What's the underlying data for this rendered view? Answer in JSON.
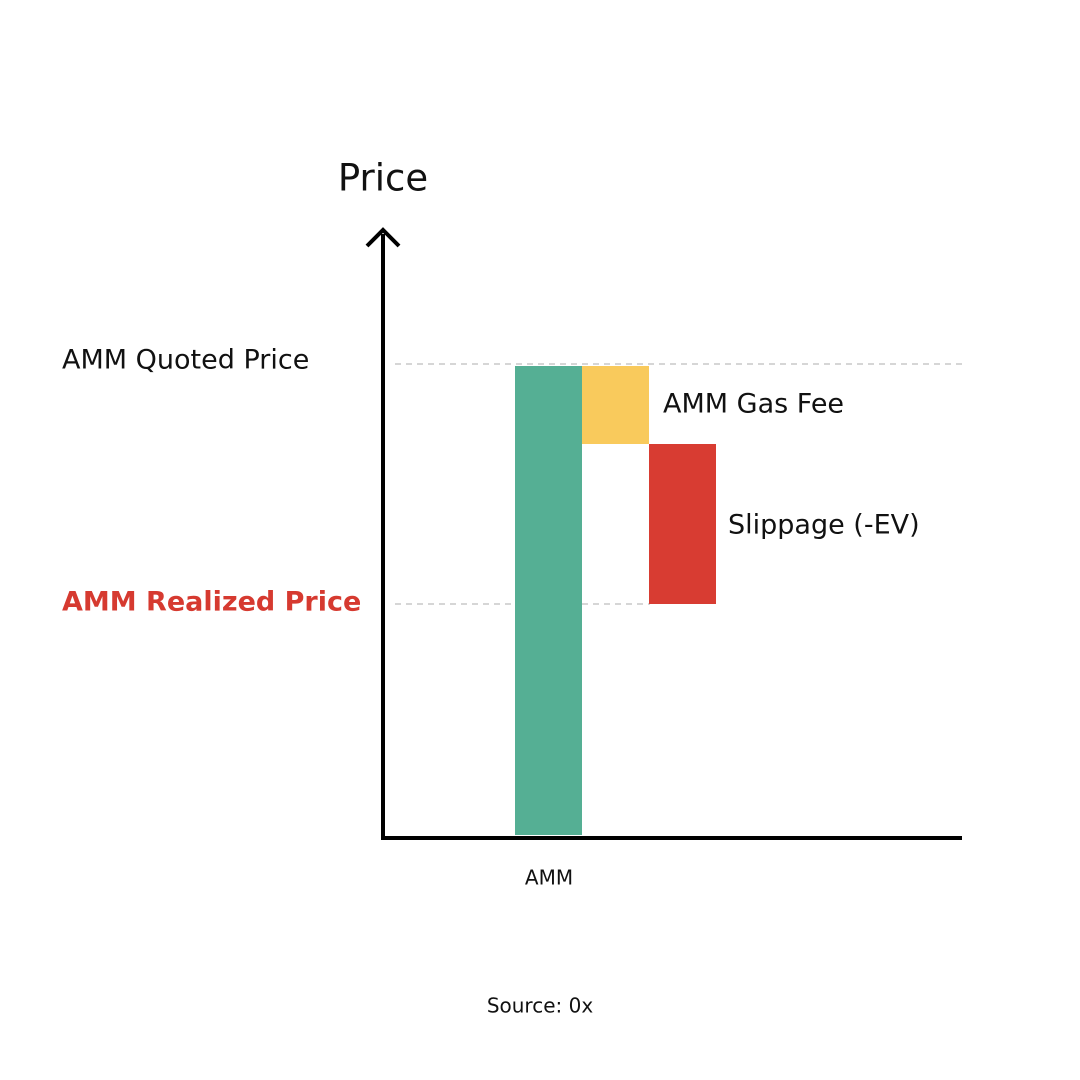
{
  "axis_label": "Price",
  "levels": [
    "AMM Quoted Price",
    "AMM Realized Price"
  ],
  "segments": [
    "AMM Gas Fee",
    "Slippage (-EV)"
  ],
  "category": "AMM",
  "source": "Source: 0x"
}
